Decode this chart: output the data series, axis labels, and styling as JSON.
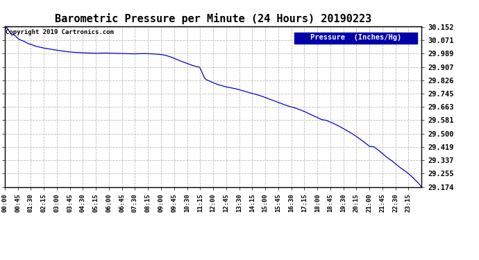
{
  "title": "Barometric Pressure per Minute (24 Hours) 20190223",
  "copyright_text": "Copyright 2019 Cartronics.com",
  "legend_label": "Pressure  (Inches/Hg)",
  "y_ticks": [
    29.174,
    29.255,
    29.337,
    29.419,
    29.5,
    29.581,
    29.663,
    29.745,
    29.826,
    29.907,
    29.989,
    30.071,
    30.152
  ],
  "x_tick_labels": [
    "00:00",
    "00:45",
    "01:30",
    "02:15",
    "03:00",
    "03:45",
    "04:30",
    "05:15",
    "06:00",
    "06:45",
    "07:30",
    "08:15",
    "09:00",
    "09:45",
    "10:30",
    "11:15",
    "12:00",
    "12:45",
    "13:30",
    "14:15",
    "15:00",
    "15:45",
    "16:30",
    "17:15",
    "18:00",
    "18:45",
    "19:30",
    "20:15",
    "21:00",
    "21:45",
    "22:30",
    "23:15"
  ],
  "y_min": 29.174,
  "y_max": 30.152,
  "line_color": "#0000cc",
  "background_color": "#ffffff",
  "grid_color": "#bbbbbb",
  "title_fontsize": 11,
  "copyright_fontsize": 6.5,
  "legend_bg": "#0000aa",
  "legend_text_color": "#ffffff",
  "waypoints": [
    [
      0,
      30.13
    ],
    [
      5,
      30.152
    ],
    [
      15,
      30.125
    ],
    [
      25,
      30.1
    ],
    [
      30,
      30.108
    ],
    [
      40,
      30.09
    ],
    [
      50,
      30.075
    ],
    [
      60,
      30.068
    ],
    [
      70,
      30.06
    ],
    [
      80,
      30.05
    ],
    [
      90,
      30.045
    ],
    [
      100,
      30.038
    ],
    [
      110,
      30.032
    ],
    [
      120,
      30.028
    ],
    [
      135,
      30.022
    ],
    [
      150,
      30.018
    ],
    [
      165,
      30.013
    ],
    [
      180,
      30.009
    ],
    [
      195,
      30.005
    ],
    [
      210,
      30.001
    ],
    [
      225,
      29.998
    ],
    [
      240,
      29.996
    ],
    [
      255,
      29.995
    ],
    [
      270,
      29.993
    ],
    [
      285,
      29.992
    ],
    [
      300,
      29.991
    ],
    [
      315,
      29.99
    ],
    [
      330,
      29.991
    ],
    [
      345,
      29.992
    ],
    [
      360,
      29.991
    ],
    [
      375,
      29.99
    ],
    [
      390,
      29.989
    ],
    [
      405,
      29.989
    ],
    [
      420,
      29.988
    ],
    [
      435,
      29.987
    ],
    [
      450,
      29.987
    ],
    [
      465,
      29.988
    ],
    [
      480,
      29.989
    ],
    [
      495,
      29.988
    ],
    [
      510,
      29.987
    ],
    [
      525,
      29.985
    ],
    [
      540,
      29.983
    ],
    [
      555,
      29.978
    ],
    [
      570,
      29.97
    ],
    [
      585,
      29.96
    ],
    [
      600,
      29.948
    ],
    [
      615,
      29.938
    ],
    [
      630,
      29.928
    ],
    [
      645,
      29.918
    ],
    [
      660,
      29.91
    ],
    [
      670,
      29.907
    ],
    [
      675,
      29.9
    ],
    [
      680,
      29.88
    ],
    [
      685,
      29.86
    ],
    [
      690,
      29.84
    ],
    [
      695,
      29.83
    ],
    [
      700,
      29.826
    ],
    [
      705,
      29.822
    ],
    [
      710,
      29.818
    ],
    [
      720,
      29.81
    ],
    [
      735,
      29.8
    ],
    [
      750,
      29.792
    ],
    [
      765,
      29.785
    ],
    [
      780,
      29.78
    ],
    [
      795,
      29.775
    ],
    [
      810,
      29.768
    ],
    [
      825,
      29.76
    ],
    [
      840,
      29.752
    ],
    [
      855,
      29.745
    ],
    [
      870,
      29.738
    ],
    [
      885,
      29.73
    ],
    [
      900,
      29.72
    ],
    [
      915,
      29.71
    ],
    [
      930,
      29.7
    ],
    [
      945,
      29.69
    ],
    [
      960,
      29.68
    ],
    [
      975,
      29.67
    ],
    [
      990,
      29.663
    ],
    [
      1005,
      29.655
    ],
    [
      1020,
      29.645
    ],
    [
      1035,
      29.635
    ],
    [
      1050,
      29.622
    ],
    [
      1065,
      29.61
    ],
    [
      1080,
      29.598
    ],
    [
      1095,
      29.585
    ],
    [
      1110,
      29.581
    ],
    [
      1125,
      29.57
    ],
    [
      1140,
      29.558
    ],
    [
      1155,
      29.545
    ],
    [
      1170,
      29.53
    ],
    [
      1185,
      29.515
    ],
    [
      1200,
      29.5
    ],
    [
      1215,
      29.482
    ],
    [
      1230,
      29.463
    ],
    [
      1245,
      29.443
    ],
    [
      1260,
      29.422
    ],
    [
      1275,
      29.419
    ],
    [
      1290,
      29.4
    ],
    [
      1305,
      29.378
    ],
    [
      1320,
      29.355
    ],
    [
      1335,
      29.337
    ],
    [
      1350,
      29.315
    ],
    [
      1365,
      29.293
    ],
    [
      1380,
      29.275
    ],
    [
      1395,
      29.255
    ],
    [
      1410,
      29.23
    ],
    [
      1425,
      29.205
    ],
    [
      1440,
      29.174
    ]
  ]
}
